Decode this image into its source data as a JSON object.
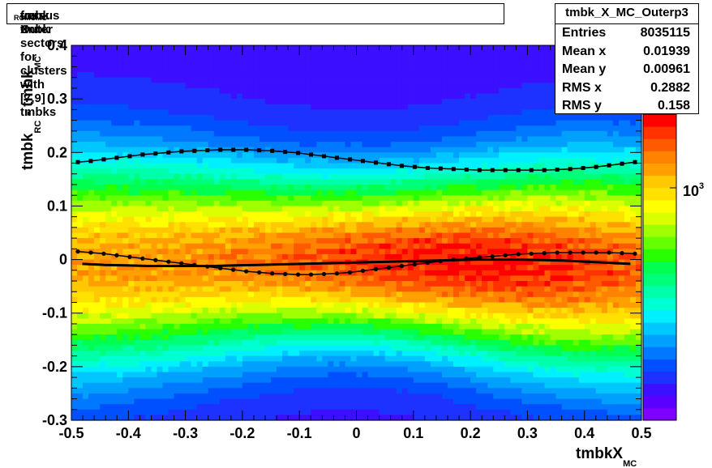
{
  "title": "tmbk_{RC} - tmbk_{MC} versus X_{MC} for Outer sectors for clusters with [7,9] tmbks",
  "title_parts": {
    "a": "tmbk",
    "a_sub": "RC",
    "b": " - tmbk",
    "b_sub": "MC",
    "c": " versus X",
    "c_sub": "MC",
    "d": " for Outer sectors for clusters with [7,9] tmbks"
  },
  "stats": {
    "name": "tmbk_X_MC_Outerp3",
    "rows": [
      {
        "label": "Entries",
        "value": "8035115"
      },
      {
        "label": "Mean x",
        "value": "0.01939"
      },
      {
        "label": "Mean y",
        "value": "0.00961"
      },
      {
        "label": "RMS x",
        "value": "0.2882"
      },
      {
        "label": "RMS y",
        "value": "0.158"
      }
    ]
  },
  "colorbar": {
    "label": "10",
    "exp": "3"
  },
  "chart_data": {
    "type": "heatmap",
    "xlabel": "tmbkX_{MC}",
    "xlabel_main": "tmbkX",
    "xlabel_sub": "MC",
    "ylabel_main": "tmbk",
    "ylabel_sub1": "RC",
    "ylabel_mid": " - tmbk",
    "ylabel_sub2": "MC",
    "xlim": [
      -0.5,
      0.5
    ],
    "ylim": [
      -0.3,
      0.4
    ],
    "xticks": [
      -0.5,
      -0.4,
      -0.3,
      -0.2,
      -0.1,
      0,
      0.1,
      0.2,
      0.3,
      0.4,
      0.5
    ],
    "xtick_labels": [
      "-0.5",
      "-0.4",
      "-0.3",
      "-0.2",
      "-0.1",
      "0",
      "0.1",
      "0.2",
      "0.3",
      "0.4",
      "0.5"
    ],
    "yticks": [
      -0.3,
      -0.2,
      -0.1,
      0,
      0.1,
      0.2,
      0.3,
      0.4
    ],
    "ytick_labels": [
      "-0.3",
      "-0.2",
      "-0.1",
      "0",
      "0.1",
      "0.2",
      "0.3",
      "0.4"
    ],
    "z_scale": "log",
    "palette": [
      "#7f00ff",
      "#5a00ff",
      "#3c0fff",
      "#1e32ff",
      "#0050ff",
      "#0078ff",
      "#00a0ff",
      "#00c8ff",
      "#00f0ff",
      "#00ffd2",
      "#00ffaa",
      "#00ff78",
      "#00ff50",
      "#28ff00",
      "#64ff00",
      "#a0ff00",
      "#dcff00",
      "#ffff00",
      "#ffe100",
      "#ffc800",
      "#ffa000",
      "#ff8200",
      "#ff5a00",
      "#ff3200",
      "#ff0000"
    ],
    "series": [
      {
        "name": "upper profile",
        "y": [
          0.182,
          0.184,
          0.187,
          0.19,
          0.193,
          0.196,
          0.198,
          0.2,
          0.202,
          0.203,
          0.204,
          0.205,
          0.205,
          0.205,
          0.204,
          0.203,
          0.201,
          0.199,
          0.196,
          0.193,
          0.19,
          0.187,
          0.184,
          0.181,
          0.178,
          0.175,
          0.173,
          0.171,
          0.17,
          0.169,
          0.168,
          0.167,
          0.167,
          0.167,
          0.167,
          0.167,
          0.167,
          0.168,
          0.169,
          0.171,
          0.173,
          0.176,
          0.179,
          0.182
        ]
      },
      {
        "name": "lower profile",
        "y": [
          0.015,
          0.013,
          0.011,
          0.008,
          0.005,
          0.002,
          -0.001,
          -0.004,
          -0.007,
          -0.01,
          -0.013,
          -0.016,
          -0.019,
          -0.022,
          -0.024,
          -0.026,
          -0.027,
          -0.028,
          -0.028,
          -0.027,
          -0.026,
          -0.024,
          -0.021,
          -0.018,
          -0.015,
          -0.012,
          -0.009,
          -0.006,
          -0.003,
          0.0,
          0.002,
          0.004,
          0.006,
          0.008,
          0.01,
          0.011,
          0.012,
          0.013,
          0.013,
          0.013,
          0.013,
          0.013,
          0.012,
          0.011
        ]
      },
      {
        "name": "fit line",
        "y": [
          -0.008,
          -0.01,
          -0.011,
          -0.012,
          -0.012,
          -0.012,
          -0.012,
          -0.011,
          -0.01,
          -0.009,
          -0.008,
          -0.007,
          -0.006,
          -0.005,
          -0.004,
          -0.003,
          -0.002,
          -0.001,
          0.0,
          0.0,
          0.0,
          -0.001,
          -0.002,
          -0.004,
          -0.006,
          -0.008
        ]
      }
    ]
  }
}
